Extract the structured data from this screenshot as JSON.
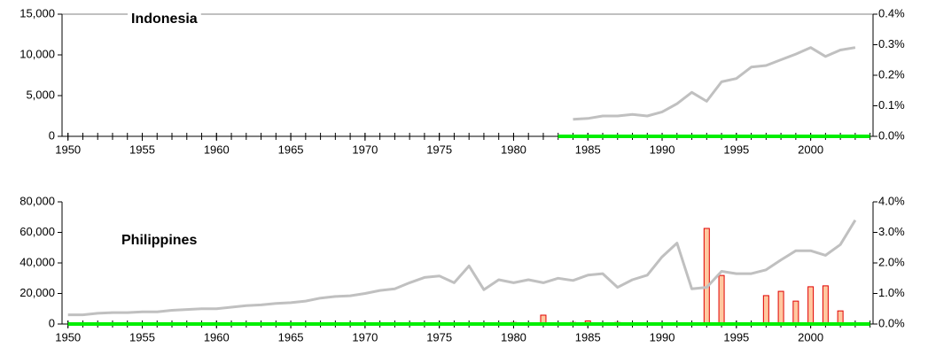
{
  "chart_data": [
    {
      "type": "combo",
      "title": "Indonesia",
      "x": [
        1950,
        1951,
        1952,
        1953,
        1954,
        1955,
        1956,
        1957,
        1958,
        1959,
        1960,
        1961,
        1962,
        1963,
        1964,
        1965,
        1966,
        1967,
        1968,
        1969,
        1970,
        1971,
        1972,
        1973,
        1974,
        1975,
        1976,
        1977,
        1978,
        1979,
        1980,
        1981,
        1982,
        1983,
        1984,
        1985,
        1986,
        1987,
        1988,
        1989,
        1990,
        1991,
        1992,
        1993,
        1994,
        1995,
        1996,
        1997,
        1998,
        1999,
        2000,
        2001,
        2002,
        2003,
        2004
      ],
      "xlim": [
        1949.6,
        2004.2
      ],
      "xticks": [
        1950,
        1955,
        1960,
        1965,
        1970,
        1975,
        1980,
        1985,
        1990,
        1995,
        2000
      ],
      "ylim": [
        0,
        15000
      ],
      "yticks": [
        0,
        {
          "value": 5000,
          "label": "5,000"
        },
        {
          "value": 10000,
          "label": "10,000"
        },
        {
          "value": 15000,
          "label": "15,000"
        }
      ],
      "y2lim": [
        0,
        0.4
      ],
      "y2ticks": [
        {
          "value": 0,
          "label": "0.0%"
        },
        {
          "value": 0.1,
          "label": "0.1%"
        },
        {
          "value": 0.2,
          "label": "0.2%"
        },
        {
          "value": 0.3,
          "label": "0.3%"
        },
        {
          "value": 0.4,
          "label": "0.4%"
        }
      ],
      "series": [
        {
          "type": "line",
          "color": "#c0c0c0",
          "values": [
            null,
            null,
            null,
            null,
            null,
            null,
            null,
            null,
            null,
            null,
            null,
            null,
            null,
            null,
            null,
            null,
            null,
            null,
            null,
            null,
            null,
            null,
            null,
            null,
            null,
            null,
            null,
            null,
            null,
            null,
            null,
            null,
            null,
            null,
            2100,
            2200,
            2500,
            2500,
            2700,
            2500,
            3000,
            4000,
            5400,
            4300,
            6700,
            7100,
            8500,
            8700,
            9400,
            10100,
            10900,
            9800,
            10600,
            10900,
            null
          ]
        },
        {
          "type": "line",
          "color": "#00ee00",
          "values": [
            null,
            null,
            null,
            null,
            null,
            null,
            null,
            null,
            null,
            null,
            null,
            null,
            null,
            null,
            null,
            null,
            null,
            null,
            null,
            null,
            null,
            null,
            null,
            null,
            null,
            null,
            null,
            null,
            null,
            null,
            null,
            null,
            null,
            0,
            0,
            0,
            0,
            0,
            0,
            0,
            0,
            0,
            0,
            0,
            0,
            0,
            0,
            0,
            0,
            0,
            0,
            0,
            0,
            0,
            0
          ]
        }
      ]
    },
    {
      "type": "combo",
      "title": "Philippines",
      "x": [
        1950,
        1951,
        1952,
        1953,
        1954,
        1955,
        1956,
        1957,
        1958,
        1959,
        1960,
        1961,
        1962,
        1963,
        1964,
        1965,
        1966,
        1967,
        1968,
        1969,
        1970,
        1971,
        1972,
        1973,
        1974,
        1975,
        1976,
        1977,
        1978,
        1979,
        1980,
        1981,
        1982,
        1983,
        1984,
        1985,
        1986,
        1987,
        1988,
        1989,
        1990,
        1991,
        1992,
        1993,
        1994,
        1995,
        1996,
        1997,
        1998,
        1999,
        2000,
        2001,
        2002,
        2003,
        2004
      ],
      "xlim": [
        1949.6,
        2004.2
      ],
      "xticks": [
        1950,
        1955,
        1960,
        1965,
        1970,
        1975,
        1980,
        1985,
        1990,
        1995,
        2000
      ],
      "ylim": [
        0,
        80000
      ],
      "yticks": [
        0,
        {
          "value": 20000,
          "label": "20,000"
        },
        {
          "value": 40000,
          "label": "40,000"
        },
        {
          "value": 60000,
          "label": "60,000"
        },
        {
          "value": 80000,
          "label": "80,000"
        }
      ],
      "y2lim": [
        0,
        4
      ],
      "y2ticks": [
        {
          "value": 0,
          "label": "0.0%"
        },
        {
          "value": 1,
          "label": "1.0%"
        },
        {
          "value": 2,
          "label": "2.0%"
        },
        {
          "value": 3,
          "label": "3.0%"
        },
        {
          "value": 4,
          "label": "4.0%"
        }
      ],
      "series": [
        {
          "type": "bar",
          "axis": "y2",
          "color": "#ffc8a0",
          "values": [
            null,
            null,
            null,
            null,
            null,
            null,
            null,
            null,
            null,
            null,
            null,
            null,
            null,
            null,
            null,
            null,
            null,
            null,
            null,
            null,
            null,
            null,
            null,
            null,
            null,
            null,
            null,
            null,
            null,
            null,
            0.05,
            null,
            0.29,
            null,
            0.05,
            0.1,
            null,
            0.05,
            null,
            null,
            null,
            null,
            null,
            3.13,
            1.59,
            null,
            null,
            0.93,
            1.07,
            0.75,
            1.22,
            1.25,
            0.43,
            null,
            null
          ]
        },
        {
          "type": "line",
          "color": "#c0c0c0",
          "values": [
            6000,
            6000,
            7000,
            7500,
            7500,
            8000,
            8000,
            9000,
            9500,
            10000,
            10000,
            11000,
            12000,
            12500,
            13500,
            14000,
            15000,
            17000,
            18000,
            18500,
            20000,
            22000,
            23000,
            27000,
            30500,
            31500,
            27000,
            38000,
            22500,
            29000,
            27000,
            29000,
            27000,
            30000,
            28500,
            32000,
            33000,
            24000,
            29000,
            32000,
            44000,
            53000,
            23000,
            24000,
            34500,
            33000,
            33000,
            35500,
            42000,
            48000,
            48000,
            45000,
            52000,
            68000,
            null
          ]
        },
        {
          "type": "line",
          "color": "#00ee00",
          "values": [
            0,
            0,
            0,
            0,
            0,
            0,
            0,
            0,
            0,
            0,
            0,
            0,
            0,
            0,
            0,
            0,
            0,
            0,
            0,
            0,
            0,
            0,
            0,
            0,
            0,
            0,
            0,
            0,
            0,
            0,
            0,
            0,
            0,
            0,
            0,
            0,
            0,
            0,
            0,
            0,
            0,
            0,
            0,
            0,
            0,
            0,
            0,
            0,
            0,
            0,
            0,
            0,
            0,
            0,
            0
          ]
        }
      ]
    }
  ]
}
